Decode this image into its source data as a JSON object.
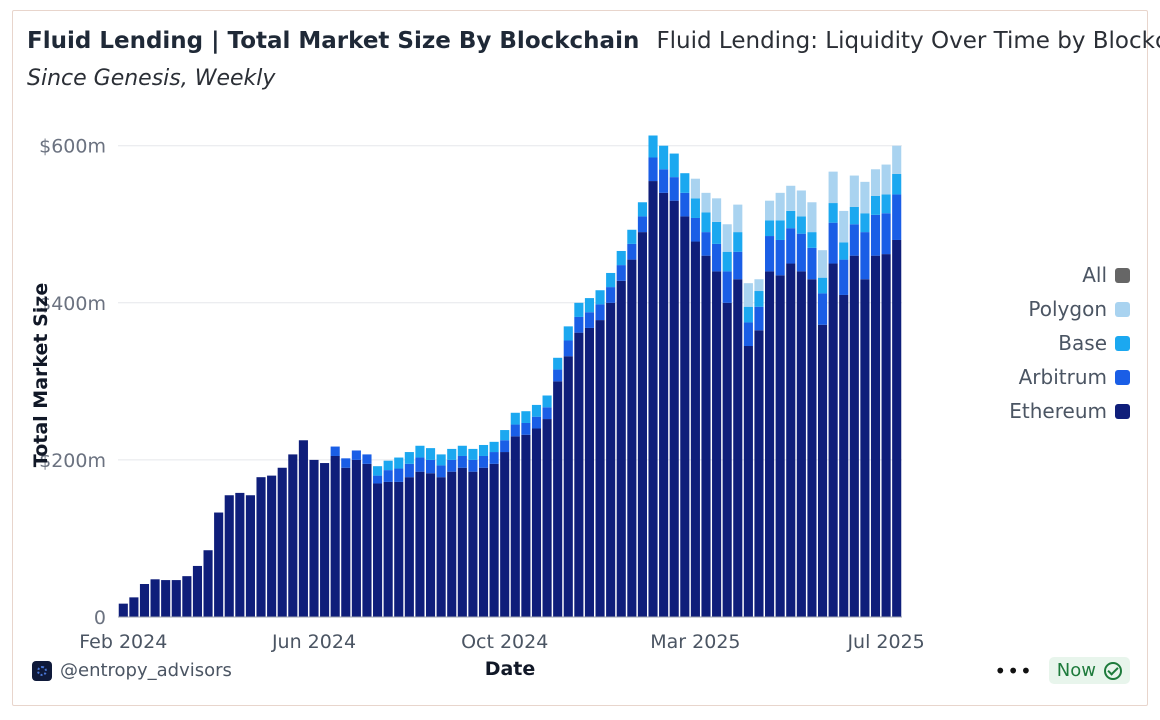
{
  "header": {
    "title": "Fluid Lending | Total Market Size By Blockchain",
    "subtitle_inline": "Fluid Lending: Liquidity Over Time by Blockchain",
    "subtitle": "Since Genesis, Weekly"
  },
  "legend": [
    {
      "label": "All",
      "color": "#666666"
    },
    {
      "label": "Polygon",
      "color": "#a9d3f0"
    },
    {
      "label": "Base",
      "color": "#1ba8f0"
    },
    {
      "label": "Arbitrum",
      "color": "#1a5ee6"
    },
    {
      "label": "Ethereum",
      "color": "#0f1e7a"
    }
  ],
  "footer": {
    "brand": "@entropy_advisors",
    "more_icon": "more-horizontal-icon",
    "status": "Now",
    "status_icon": "check-circle-icon"
  },
  "chart_data": {
    "type": "bar",
    "stacked": true,
    "xlabel": "Date",
    "ylabel": "Total Market Size",
    "ylim": [
      0,
      620
    ],
    "yticks": [
      {
        "value": 0,
        "label": "0"
      },
      {
        "value": 200,
        "label": "$200m"
      },
      {
        "value": 400,
        "label": "$400m"
      },
      {
        "value": 600,
        "label": "$600m"
      }
    ],
    "xticks": [
      {
        "index": 0,
        "label": "Feb 2024"
      },
      {
        "index": 18,
        "label": "Jun 2024"
      },
      {
        "index": 36,
        "label": "Oct 2024"
      },
      {
        "index": 54,
        "label": "Mar 2025"
      },
      {
        "index": 72,
        "label": "Jul 2025"
      }
    ],
    "grid": true,
    "legend_position": "right",
    "series": [
      {
        "name": "Ethereum",
        "color": "#0f1e7a",
        "values": [
          17,
          25,
          42,
          48,
          47,
          47,
          52,
          65,
          85,
          133,
          155,
          158,
          155,
          178,
          180,
          190,
          207,
          225,
          200,
          196,
          205,
          190,
          200,
          195,
          170,
          172,
          172,
          178,
          185,
          183,
          178,
          185,
          190,
          185,
          190,
          195,
          210,
          230,
          232,
          240,
          252,
          300,
          332,
          362,
          368,
          378,
          400,
          428,
          455,
          490,
          555,
          540,
          530,
          510,
          478,
          460,
          440,
          400,
          430,
          345,
          365,
          440,
          435,
          450,
          440,
          430,
          372,
          450,
          410,
          460,
          430,
          460,
          462,
          480
        ],
        "_note": ""
      },
      {
        "name": "Arbitrum",
        "color": "#1a5ee6",
        "values": [
          0,
          0,
          0,
          0,
          0,
          0,
          0,
          0,
          0,
          0,
          0,
          0,
          0,
          0,
          0,
          0,
          0,
          0,
          0,
          0,
          12,
          12,
          12,
          12,
          10,
          15,
          17,
          17,
          18,
          17,
          15,
          15,
          15,
          15,
          15,
          15,
          15,
          15,
          15,
          15,
          15,
          15,
          20,
          20,
          20,
          20,
          20,
          20,
          20,
          20,
          30,
          30,
          30,
          30,
          30,
          30,
          35,
          40,
          35,
          30,
          30,
          45,
          45,
          45,
          48,
          40,
          40,
          52,
          45,
          40,
          60,
          52,
          52,
          58
        ]
      },
      {
        "name": "Base",
        "color": "#1ba8f0",
        "values": [
          0,
          0,
          0,
          0,
          0,
          0,
          0,
          0,
          0,
          0,
          0,
          0,
          0,
          0,
          0,
          0,
          0,
          0,
          0,
          0,
          0,
          0,
          0,
          0,
          12,
          12,
          14,
          15,
          15,
          15,
          14,
          14,
          13,
          14,
          14,
          13,
          13,
          15,
          15,
          15,
          15,
          15,
          18,
          18,
          18,
          18,
          18,
          18,
          18,
          18,
          28,
          30,
          30,
          25,
          25,
          25,
          28,
          25,
          25,
          20,
          20,
          20,
          25,
          22,
          22,
          20,
          20,
          25,
          22,
          22,
          24,
          24,
          24,
          26
        ]
      },
      {
        "name": "Polygon",
        "color": "#a9d3f0",
        "values": [
          0,
          0,
          0,
          0,
          0,
          0,
          0,
          0,
          0,
          0,
          0,
          0,
          0,
          0,
          0,
          0,
          0,
          0,
          0,
          0,
          0,
          0,
          0,
          0,
          0,
          0,
          0,
          0,
          0,
          0,
          0,
          0,
          0,
          0,
          0,
          0,
          0,
          0,
          0,
          0,
          0,
          0,
          0,
          0,
          0,
          0,
          0,
          0,
          0,
          0,
          0,
          0,
          0,
          0,
          25,
          25,
          30,
          35,
          35,
          30,
          15,
          25,
          35,
          32,
          33,
          38,
          35,
          40,
          40,
          40,
          40,
          34,
          38,
          36
        ]
      }
    ]
  }
}
